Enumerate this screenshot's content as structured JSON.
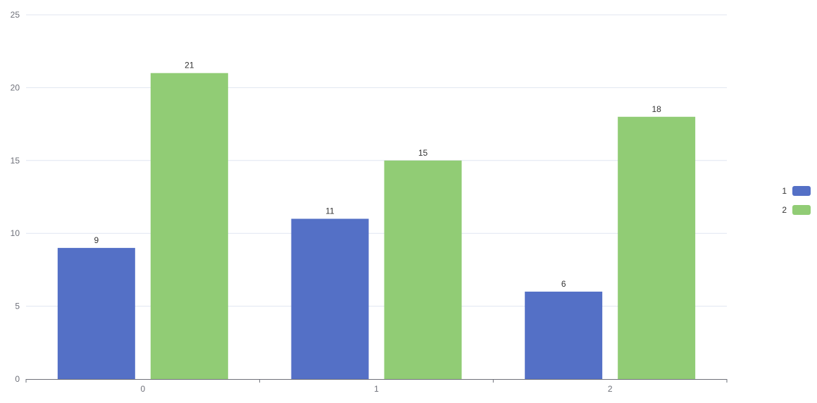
{
  "chart_data": {
    "type": "bar",
    "categories": [
      "0",
      "1",
      "2"
    ],
    "series": [
      {
        "name": "1",
        "values": [
          9,
          11,
          6
        ],
        "color": "#5470c6"
      },
      {
        "name": "2",
        "values": [
          21,
          15,
          18
        ],
        "color": "#91cc75"
      }
    ],
    "ylim": [
      0,
      25
    ],
    "yticks": [
      0,
      5,
      10,
      15,
      20,
      25
    ],
    "grid": true,
    "legend": "right",
    "data_labels": true
  }
}
